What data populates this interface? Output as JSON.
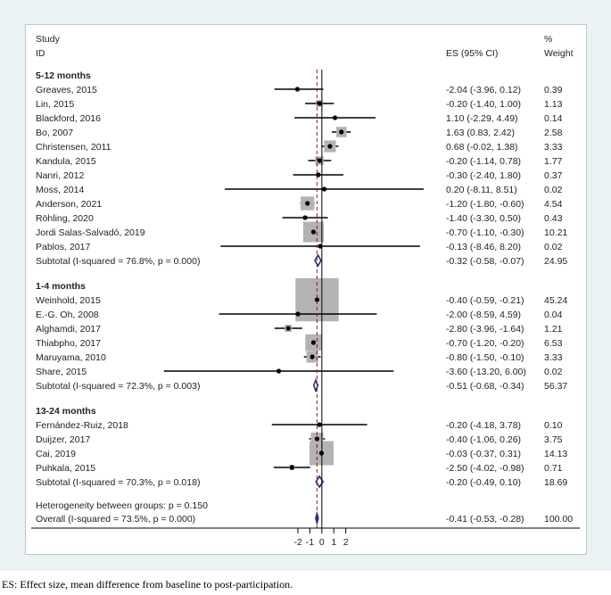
{
  "header": {
    "study_line1": "Study",
    "study_line2": "ID",
    "es_label": "ES (95% CI)",
    "weight_line1": "%",
    "weight_line2": "Weight"
  },
  "footnote": "ES: Effect size, mean difference from baseline to post-participation.",
  "colors": {
    "background": "#eaf2f3",
    "box": "#b3b3b3",
    "diamond": "#1f2f8a",
    "overall_line": "#8b1a1a"
  },
  "chart_data": {
    "type": "forest",
    "xlim": [
      -14,
      10
    ],
    "xticks": [
      "-2",
      "-1",
      "0",
      "1",
      "2"
    ],
    "xtick_values": [
      -2,
      -1,
      0,
      1,
      2
    ],
    "overall_es": -0.41,
    "groups": [
      {
        "name": "5-12 months",
        "studies": [
          {
            "label": "Greaves, 2015",
            "es": -2.04,
            "lo": -3.96,
            "hi": 0.12,
            "es_text": "-2.04 (-3.96, 0.12)",
            "weight": "0.39"
          },
          {
            "label": "Lin, 2015",
            "es": -0.2,
            "lo": -1.4,
            "hi": 1.0,
            "es_text": "-0.20 (-1.40, 1.00)",
            "weight": "1.13"
          },
          {
            "label": "Blackford, 2016",
            "es": 1.1,
            "lo": -2.29,
            "hi": 4.49,
            "es_text": "1.10 (-2.29, 4.49)",
            "weight": "0.14"
          },
          {
            "label": "Bo, 2007",
            "es": 1.63,
            "lo": 0.83,
            "hi": 2.42,
            "es_text": "1.63 (0.83, 2.42)",
            "weight": "2.58"
          },
          {
            "label": "Christensen, 2011",
            "es": 0.68,
            "lo": -0.02,
            "hi": 1.38,
            "es_text": "0.68 (-0.02, 1.38)",
            "weight": "3.33"
          },
          {
            "label": "Kandula, 2015",
            "es": -0.2,
            "lo": -1.14,
            "hi": 0.78,
            "es_text": "-0.20 (-1.14, 0.78)",
            "weight": "1.77"
          },
          {
            "label": "Nanri, 2012",
            "es": -0.3,
            "lo": -2.4,
            "hi": 1.8,
            "es_text": "-0.30 (-2.40, 1.80)",
            "weight": "0.37"
          },
          {
            "label": "Moss, 2014",
            "es": 0.2,
            "lo": -8.11,
            "hi": 8.51,
            "es_text": "0.20 (-8.11, 8.51)",
            "weight": "0.02"
          },
          {
            "label": "Anderson, 2021",
            "es": -1.2,
            "lo": -1.8,
            "hi": -0.6,
            "es_text": "-1.20 (-1.80, -0.60)",
            "weight": "4.54"
          },
          {
            "label": "Röhling, 2020",
            "es": -1.4,
            "lo": -3.3,
            "hi": 0.5,
            "es_text": "-1.40 (-3.30, 0.50)",
            "weight": "0.43"
          },
          {
            "label": "Jordi Salas-Salvadó, 2019",
            "es": -0.7,
            "lo": -1.1,
            "hi": -0.3,
            "es_text": "-0.70 (-1.10, -0.30)",
            "weight": "10.21"
          },
          {
            "label": "Pablos, 2017",
            "es": -0.13,
            "lo": -8.46,
            "hi": 8.2,
            "es_text": "-0.13 (-8.46, 8.20)",
            "weight": "0.02"
          }
        ],
        "subtotal": {
          "label": "Subtotal  (I-squared = 76.8%, p = 0.000)",
          "es": -0.32,
          "lo": -0.58,
          "hi": -0.07,
          "es_text": "-0.32 (-0.58, -0.07)",
          "weight": "24.95"
        }
      },
      {
        "name": "1-4 months",
        "studies": [
          {
            "label": "Weinhold, 2015",
            "es": -0.4,
            "lo": -0.59,
            "hi": -0.21,
            "es_text": "-0.40 (-0.59, -0.21)",
            "weight": "45.24"
          },
          {
            "label": "E.-G. Oh, 2008",
            "es": -2.0,
            "lo": -8.59,
            "hi": 4.59,
            "es_text": "-2.00 (-8.59, 4.59)",
            "weight": "0.04"
          },
          {
            "label": "Alghamdi, 2017",
            "es": -2.8,
            "lo": -3.96,
            "hi": -1.64,
            "es_text": "-2.80 (-3.96, -1.64)",
            "weight": "1.21"
          },
          {
            "label": "Thiabpho, 2017",
            "es": -0.7,
            "lo": -1.2,
            "hi": -0.2,
            "es_text": "-0.70 (-1.20, -0.20)",
            "weight": "6.53"
          },
          {
            "label": "Maruyama, 2010",
            "es": -0.8,
            "lo": -1.5,
            "hi": -0.1,
            "es_text": "-0.80 (-1.50, -0.10)",
            "weight": "3.33"
          },
          {
            "label": "Share, 2015",
            "es": -3.6,
            "lo": -13.2,
            "hi": 6.0,
            "es_text": "-3.60 (-13.20, 6.00)",
            "weight": "0.02"
          }
        ],
        "subtotal": {
          "label": "Subtotal  (I-squared = 72.3%, p = 0.003)",
          "es": -0.51,
          "lo": -0.68,
          "hi": -0.34,
          "es_text": "-0.51 (-0.68, -0.34)",
          "weight": "56.37"
        }
      },
      {
        "name": "13-24 months",
        "studies": [
          {
            "label": "Fernández-Ruiz, 2018",
            "es": -0.2,
            "lo": -4.18,
            "hi": 3.78,
            "es_text": "-0.20 (-4.18, 3.78)",
            "weight": "0.10"
          },
          {
            "label": "Duijzer, 2017",
            "es": -0.4,
            "lo": -1.06,
            "hi": 0.26,
            "es_text": "-0.40 (-1.06, 0.26)",
            "weight": "3.75"
          },
          {
            "label": "Cai, 2019",
            "es": -0.03,
            "lo": -0.37,
            "hi": 0.31,
            "es_text": "-0.03 (-0.37, 0.31)",
            "weight": "14.13"
          },
          {
            "label": "Puhkala, 2015",
            "es": -2.5,
            "lo": -4.02,
            "hi": -0.98,
            "es_text": "-2.50 (-4.02, -0.98)",
            "weight": "0.71"
          }
        ],
        "subtotal": {
          "label": "Subtotal  (I-squared = 70.3%, p = 0.018)",
          "es": -0.2,
          "lo": -0.49,
          "hi": 0.1,
          "es_text": "-0.20 (-0.49, 0.10)",
          "weight": "18.69"
        }
      }
    ],
    "heterogeneity": "Heterogeneity between groups: p = 0.150",
    "overall": {
      "label": "Overall  (I-squared = 73.5%, p = 0.000)",
      "es": -0.41,
      "lo": -0.53,
      "hi": -0.28,
      "es_text": "-0.41 (-0.53, -0.28)",
      "weight": "100.00"
    }
  }
}
